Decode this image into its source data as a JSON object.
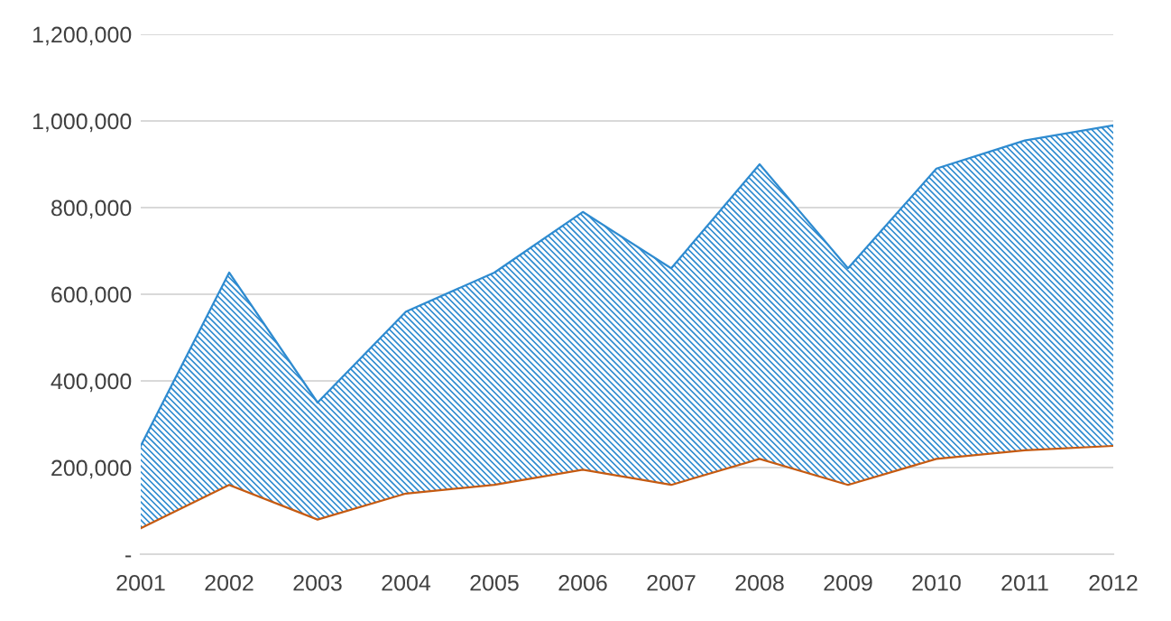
{
  "chart_data": {
    "type": "area",
    "categories": [
      "2001",
      "2002",
      "2003",
      "2004",
      "2005",
      "2006",
      "2007",
      "2008",
      "2009",
      "2010",
      "2011",
      "2012"
    ],
    "series": [
      {
        "type": "line",
        "color": "#c55a11",
        "values": [
          60000,
          160000,
          80000,
          140000,
          160000,
          195000,
          160000,
          220000,
          160000,
          220000,
          240000,
          250000
        ]
      },
      {
        "color": "#2e8bd0",
        "values": [
          250000,
          650000,
          350000,
          560000,
          650000,
          790000,
          660000,
          900000,
          660000,
          890000,
          955000,
          990000
        ]
      }
    ],
    "ylim": [
      0,
      1200000
    ],
    "yticks": [
      {
        "value": 0,
        "label": "-"
      },
      {
        "value": 200000,
        "label": "200,000"
      },
      {
        "value": 400000,
        "label": "400,000"
      },
      {
        "value": 600000,
        "label": "600,000"
      },
      {
        "value": 800000,
        "label": "800,000"
      },
      {
        "value": 1000000,
        "label": "1,000,000"
      },
      {
        "value": 1200000,
        "label": "1,200,000"
      }
    ],
    "grid": "y"
  }
}
